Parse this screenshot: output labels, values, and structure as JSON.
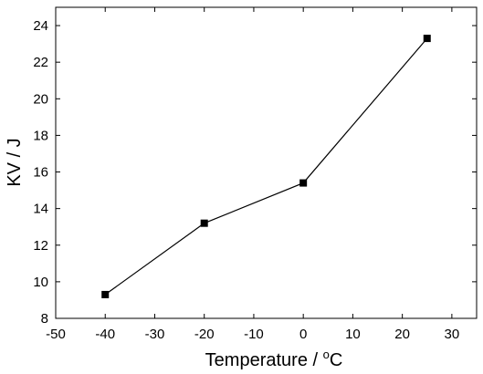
{
  "chart_data": {
    "type": "line",
    "title": "",
    "xlabel": "Temperature / °C",
    "ylabel": "KV / J",
    "xlim": [
      -50,
      35
    ],
    "ylim": [
      8,
      25
    ],
    "xticks": [
      -50,
      -40,
      -30,
      -20,
      -10,
      0,
      10,
      20,
      30
    ],
    "yticks": [
      8,
      10,
      12,
      14,
      16,
      18,
      20,
      22,
      24
    ],
    "grid": false,
    "legend": "none",
    "marker": "square",
    "color": "#000000",
    "series": [
      {
        "x": [
          -40,
          -20,
          0,
          25
        ],
        "y": [
          9.3,
          13.2,
          15.4,
          23.3
        ]
      }
    ]
  }
}
